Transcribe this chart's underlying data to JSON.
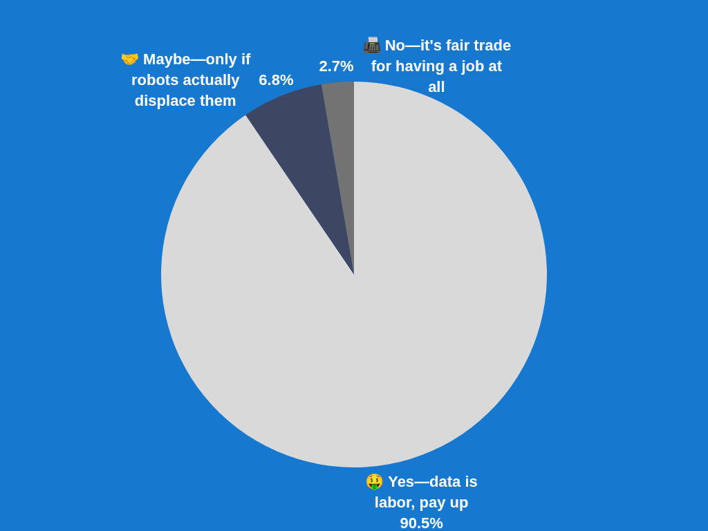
{
  "chart_data": {
    "type": "pie",
    "categories": [
      "🤑 Yes—data is labor, pay up",
      "🤝 Maybe—only if robots actually displace them",
      "📠 No—it's fair trade for having a job at all"
    ],
    "values": [
      90.5,
      6.8,
      2.7
    ],
    "colors": [
      "#d9d9d9",
      "#3d4663",
      "#737373"
    ],
    "value_labels": [
      "90.5%",
      "6.8%",
      "2.7%"
    ]
  }
}
